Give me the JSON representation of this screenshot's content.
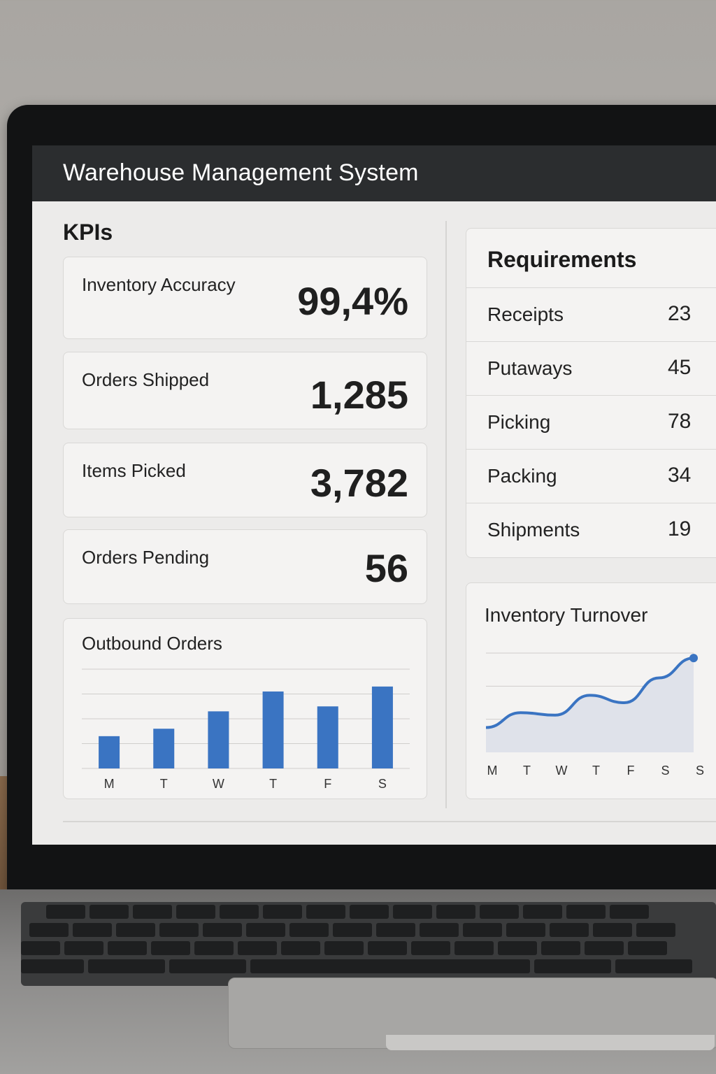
{
  "window": {
    "title": "Warehouse Management System"
  },
  "kpis": {
    "section_title": "KPIs",
    "items": [
      {
        "label": "Inventory Accuracy",
        "value": "99,4%"
      },
      {
        "label": "Orders Shipped",
        "value": "1,285"
      },
      {
        "label": "Items Picked",
        "value": "3,782"
      },
      {
        "label": "Orders Pending",
        "value": "56"
      }
    ]
  },
  "requirements": {
    "title": "Requirements",
    "rows": [
      {
        "label": "Receipts",
        "count": "23"
      },
      {
        "label": "Putaways",
        "count": "45"
      },
      {
        "label": "Picking",
        "count": "78"
      },
      {
        "label": "Packing",
        "count": "34"
      },
      {
        "label": "Shipments",
        "count": "19"
      }
    ]
  },
  "colors": {
    "accent": "#3a74c2",
    "area_fill": "#dfe2ea",
    "titlebar": "#2b2d2f"
  },
  "chart_data": [
    {
      "type": "bar",
      "title": "Outbound Orders",
      "categories": [
        "M",
        "T",
        "W",
        "T",
        "F",
        "S"
      ],
      "values": [
        13,
        16,
        23,
        31,
        25,
        33
      ],
      "ylim": [
        0,
        40
      ],
      "grid": true
    },
    {
      "type": "area",
      "title": "Inventory Turnover",
      "categories": [
        "M",
        "T",
        "W",
        "T",
        "F",
        "S",
        "S"
      ],
      "values": [
        10,
        16,
        15,
        23,
        20,
        30,
        38
      ],
      "ylim": [
        0,
        40
      ],
      "grid": true,
      "marker_on_last_point": true
    }
  ]
}
